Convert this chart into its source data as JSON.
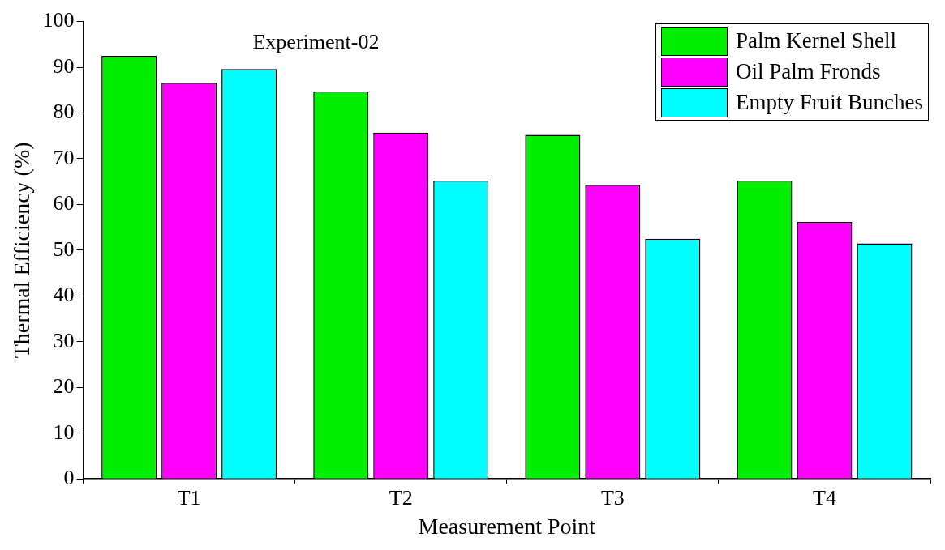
{
  "chart_data": {
    "type": "bar",
    "xlabel": "Measurement Point",
    "ylabel": "Thermal Efficiency (%)",
    "annotations": [
      "Experiment-02"
    ],
    "categories": [
      "T1",
      "T2",
      "T3",
      "T4"
    ],
    "series": [
      {
        "name": "Palm Kernel Shell",
        "color": "#00ee00",
        "values": [
          92.5,
          84.7,
          75.2,
          65.2
        ]
      },
      {
        "name": "Oil Palm Fronds",
        "color": "#ff00ff",
        "values": [
          86.6,
          75.7,
          64.3,
          56.2
        ]
      },
      {
        "name": "Empty Fruit Bunches",
        "color": "#00ffff",
        "values": [
          89.6,
          65.2,
          52.5,
          51.5
        ]
      }
    ],
    "ylim": [
      0,
      100
    ],
    "yticks": [
      0,
      10,
      20,
      30,
      40,
      50,
      60,
      70,
      80,
      90,
      100
    ],
    "grid": false,
    "legend": "top right"
  }
}
